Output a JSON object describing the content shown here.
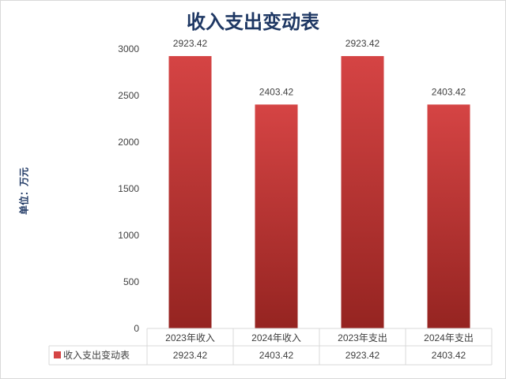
{
  "chart_data": {
    "type": "bar",
    "title": "收入支出变动表",
    "ylabel": "单位：万元",
    "xlabel": "",
    "categories": [
      "2023年收入",
      "2024年收入",
      "2023年支出",
      "2024年支出"
    ],
    "series": [
      {
        "name": "收入支出变动表",
        "values": [
          2923.42,
          2403.42,
          2923.42,
          2403.42
        ]
      }
    ],
    "value_labels": [
      "2923.42",
      "2403.42",
      "2923.42",
      "2403.42"
    ],
    "ylim": [
      0,
      3000
    ],
    "yticks": [
      "0",
      "500",
      "1000",
      "1500",
      "2000",
      "2500",
      "3000"
    ],
    "grid": false,
    "data_table": true,
    "legend": "data-table",
    "colors": {
      "bar_top": "#d54444",
      "bar_bottom": "#952421",
      "title": "#1f3864",
      "grid": "#d9d9d9",
      "text": "#404040"
    }
  }
}
